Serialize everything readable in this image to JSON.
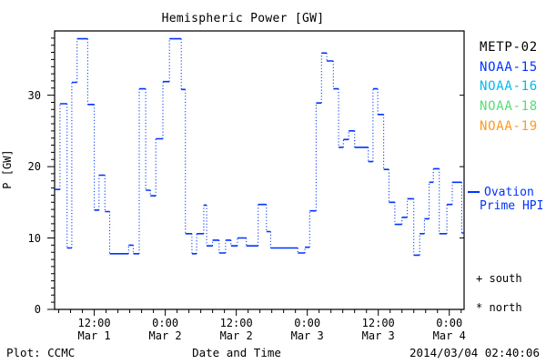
{
  "title": "Hemispheric Power [GW]",
  "axes": {
    "y": {
      "label": "P [GW]",
      "ticks": [
        0,
        10,
        20,
        30
      ],
      "min": 0,
      "max": 39,
      "minor_step": 1
    },
    "x": {
      "label": "Date and Time",
      "ticks": [
        {
          "hour": 12,
          "time": "12:00",
          "date": "Mar 1"
        },
        {
          "hour": 24,
          "time": "0:00",
          "date": "Mar 2"
        },
        {
          "hour": 36,
          "time": "12:00",
          "date": "Mar 2"
        },
        {
          "hour": 48,
          "time": "0:00",
          "date": "Mar 3"
        },
        {
          "hour": 60,
          "time": "12:00",
          "date": "Mar 3"
        },
        {
          "hour": 72,
          "time": "0:00",
          "date": "Mar 4"
        }
      ],
      "minor_step_hours": 2
    }
  },
  "legend": {
    "satellites": [
      {
        "name": "METP-02",
        "color": "#000000"
      },
      {
        "name": "NOAA-15",
        "color": "#0033ff"
      },
      {
        "name": "NOAA-16",
        "color": "#00bbee"
      },
      {
        "name": "NOAA-18",
        "color": "#55dd77"
      },
      {
        "name": "NOAA-19",
        "color": "#ff9922"
      }
    ],
    "line_label_line1": "Ovation",
    "line_label_line2": "Prime HPI",
    "line_color": "#0033ff"
  },
  "markers": {
    "south_marker": "+",
    "south_label": "south",
    "north_marker": "*",
    "north_label": "north"
  },
  "footer": {
    "left": "Plot: CCMC",
    "center": "Date and Time",
    "right": "2014/03/04 02:40:06"
  },
  "colors": {
    "frame": "#000000",
    "curve": "#0033ff",
    "background": "#ffffff"
  },
  "chart_data": {
    "type": "line",
    "style": "step",
    "title": "Hemispheric Power [GW]",
    "xlabel": "Date and Time",
    "ylabel": "P [GW]",
    "x_unit": "hours since Mar 1 2014 00:00 UT",
    "xlim": [
      5.3,
      74.5
    ],
    "ylim": [
      0,
      39
    ],
    "grid": false,
    "legend_position": "right-outside",
    "series_name": "Ovation Prime HPI",
    "steps": [
      [
        5.3,
        16.8
      ],
      [
        6.2,
        28.8
      ],
      [
        7.4,
        8.6
      ],
      [
        8.2,
        31.8
      ],
      [
        9.1,
        37.9
      ],
      [
        10.9,
        28.7
      ],
      [
        12.0,
        13.9
      ],
      [
        12.8,
        18.8
      ],
      [
        13.8,
        13.7
      ],
      [
        14.6,
        7.8
      ],
      [
        17.8,
        9.0
      ],
      [
        18.6,
        7.8
      ],
      [
        19.6,
        30.9
      ],
      [
        20.7,
        16.7
      ],
      [
        21.5,
        15.9
      ],
      [
        22.4,
        23.9
      ],
      [
        23.6,
        31.9
      ],
      [
        24.7,
        37.9
      ],
      [
        26.7,
        30.8
      ],
      [
        27.4,
        10.6
      ],
      [
        28.5,
        7.8
      ],
      [
        29.3,
        10.6
      ],
      [
        30.5,
        14.6
      ],
      [
        31.0,
        8.9
      ],
      [
        32.0,
        9.7
      ],
      [
        33.1,
        7.9
      ],
      [
        34.2,
        9.7
      ],
      [
        35.1,
        8.9
      ],
      [
        36.2,
        10.0
      ],
      [
        37.7,
        8.9
      ],
      [
        39.7,
        14.7
      ],
      [
        41.1,
        10.9
      ],
      [
        41.8,
        8.6
      ],
      [
        46.4,
        7.9
      ],
      [
        47.6,
        8.7
      ],
      [
        48.4,
        13.8
      ],
      [
        49.5,
        28.9
      ],
      [
        50.4,
        35.9
      ],
      [
        51.3,
        34.8
      ],
      [
        52.4,
        30.9
      ],
      [
        53.3,
        22.7
      ],
      [
        54.1,
        23.8
      ],
      [
        55.0,
        25.0
      ],
      [
        56.0,
        22.7
      ],
      [
        58.3,
        20.7
      ],
      [
        59.1,
        30.9
      ],
      [
        59.9,
        27.3
      ],
      [
        60.9,
        19.6
      ],
      [
        61.8,
        15.0
      ],
      [
        62.8,
        11.9
      ],
      [
        64.0,
        12.9
      ],
      [
        64.9,
        15.5
      ],
      [
        66.0,
        7.6
      ],
      [
        67.0,
        10.6
      ],
      [
        67.8,
        12.7
      ],
      [
        68.6,
        17.8
      ],
      [
        69.3,
        19.7
      ],
      [
        70.3,
        10.6
      ],
      [
        71.6,
        14.7
      ],
      [
        72.5,
        17.8
      ],
      [
        74.1,
        10.7
      ]
    ]
  }
}
